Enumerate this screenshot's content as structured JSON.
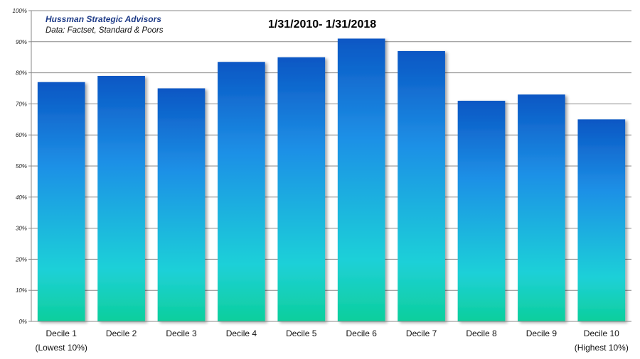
{
  "chart_data": {
    "type": "bar",
    "title": "1/31/2010- 1/31/2018",
    "source": {
      "title": "Hussman Strategic Advisors",
      "data": "Data: Factset, Standard & Poors"
    },
    "categories": [
      "Decile 1",
      "Decile 2",
      "Decile 3",
      "Decile 4",
      "Decile 5",
      "Decile 6",
      "Decile 7",
      "Decile 8",
      "Decile 9",
      "Decile 10"
    ],
    "category_sublabels": [
      "(Lowest 10%)",
      "",
      "",
      "",
      "",
      "",
      "",
      "",
      "",
      "(Highest 10%)"
    ],
    "values": [
      77,
      79,
      75,
      83.5,
      85,
      91,
      87,
      71,
      73,
      65
    ],
    "value_unit": "%",
    "ylim": [
      0,
      100
    ],
    "yticks": [
      "0%",
      "10%",
      "20%",
      "30%",
      "40%",
      "50%",
      "60%",
      "70%",
      "80%",
      "90%",
      "100%"
    ],
    "grid": true,
    "colors": {
      "bar_top": "#0a57c4",
      "bar_mid": "#1e90e6",
      "bar_low": "#1fd0d8",
      "bar_bottom": "#0ccf9c",
      "grid": "#888888"
    }
  }
}
